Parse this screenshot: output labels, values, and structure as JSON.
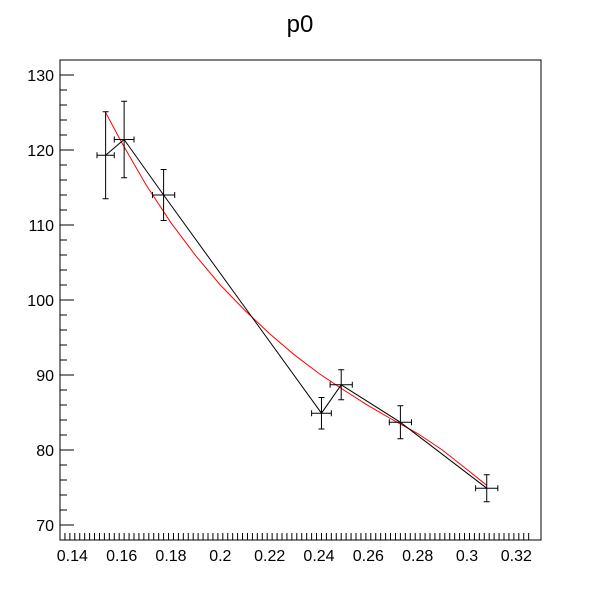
{
  "chart_data": {
    "type": "scatter",
    "title": "p0",
    "xlabel": "",
    "ylabel": "",
    "xlim": [
      0.135,
      0.33
    ],
    "ylim": [
      68,
      132
    ],
    "x_ticks": [
      0.14,
      0.16,
      0.18,
      0.2,
      0.22,
      0.24,
      0.26,
      0.28,
      0.3,
      0.32
    ],
    "x_tick_labels": [
      "0.14",
      "0.16",
      "0.18",
      "0.2",
      "0.22",
      "0.24",
      "0.26",
      "0.28",
      "0.3",
      "0.32"
    ],
    "y_ticks": [
      70,
      80,
      90,
      100,
      110,
      120,
      130
    ],
    "y_tick_labels": [
      "70",
      "80",
      "90",
      "100",
      "110",
      "120",
      "130"
    ],
    "grid": false,
    "series": [
      {
        "kind": "points-with-errors",
        "color": "#000000",
        "points": [
          {
            "x": 0.1535,
            "y": 119.3,
            "xerr": 0.0035,
            "yerr": 5.8
          },
          {
            "x": 0.161,
            "y": 121.4,
            "xerr": 0.004,
            "yerr": 5.1
          },
          {
            "x": 0.177,
            "y": 114.0,
            "xerr": 0.0045,
            "yerr": 3.4
          },
          {
            "x": 0.241,
            "y": 84.9,
            "xerr": 0.004,
            "yerr": 2.1
          },
          {
            "x": 0.249,
            "y": 88.7,
            "xerr": 0.0045,
            "yerr": 2.0
          },
          {
            "x": 0.273,
            "y": 83.7,
            "xerr": 0.0045,
            "yerr": 2.2
          },
          {
            "x": 0.308,
            "y": 74.9,
            "xerr": 0.0045,
            "yerr": 1.8
          }
        ]
      },
      {
        "kind": "fit-curve",
        "color": "#ff0000",
        "x": [
          0.1535,
          0.16,
          0.17,
          0.18,
          0.19,
          0.2,
          0.21,
          0.22,
          0.23,
          0.24,
          0.25,
          0.26,
          0.27,
          0.28,
          0.29,
          0.3,
          0.308
        ],
        "y": [
          125.0,
          121.0,
          115.3,
          110.3,
          105.9,
          102.0,
          98.6,
          95.5,
          92.7,
          90.2,
          88.0,
          85.9,
          84.0,
          82.2,
          80.0,
          77.4,
          75.3
        ]
      }
    ]
  }
}
